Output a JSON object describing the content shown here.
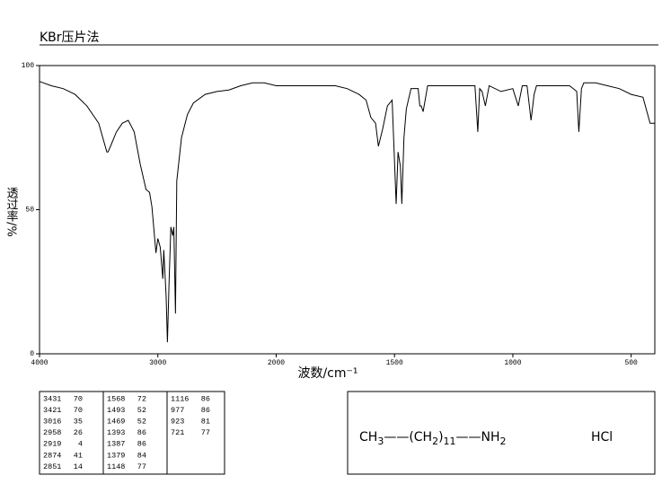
{
  "chart_data": {
    "type": "line",
    "title": "KBr压片法",
    "xlabel": "波数/cm⁻¹",
    "ylabel": "透过率/%",
    "xlim": [
      4000,
      400
    ],
    "ylim": [
      0,
      100
    ],
    "x_scale_break": 2000,
    "xticks": [
      4000,
      3000,
      2000,
      1500,
      1000,
      500
    ],
    "yticks": [
      0,
      50,
      100
    ],
    "color": "#000000",
    "x": [
      4000,
      3900,
      3800,
      3700,
      3600,
      3500,
      3431,
      3421,
      3400,
      3350,
      3300,
      3250,
      3200,
      3150,
      3100,
      3070,
      3050,
      3016,
      3000,
      2980,
      2958,
      2950,
      2930,
      2919,
      2905,
      2890,
      2874,
      2865,
      2851,
      2840,
      2800,
      2750,
      2700,
      2600,
      2500,
      2400,
      2300,
      2200,
      2100,
      2000,
      1900,
      1800,
      1750,
      1700,
      1650,
      1620,
      1600,
      1580,
      1568,
      1550,
      1530,
      1510,
      1493,
      1485,
      1475,
      1469,
      1460,
      1450,
      1430,
      1400,
      1393,
      1387,
      1379,
      1360,
      1300,
      1250,
      1200,
      1160,
      1148,
      1140,
      1130,
      1116,
      1100,
      1050,
      1000,
      977,
      960,
      940,
      923,
      910,
      900,
      850,
      800,
      760,
      730,
      721,
      710,
      700,
      650,
      600,
      550,
      500,
      450,
      420,
      400
    ],
    "values": [
      94.5,
      93,
      92,
      90,
      86,
      80,
      70,
      70,
      72,
      77,
      80,
      81,
      77,
      66,
      57,
      56,
      51,
      35,
      40,
      37,
      26,
      36,
      20,
      4,
      25,
      44,
      41,
      44,
      14,
      60,
      75,
      83,
      87,
      90,
      91,
      91.5,
      93,
      94,
      94,
      93,
      93,
      93,
      93,
      92,
      90,
      88,
      82,
      80,
      72,
      78,
      86,
      88,
      52,
      70,
      65,
      52,
      75,
      85,
      92,
      92,
      86,
      86,
      84,
      93,
      93,
      93,
      93,
      93,
      77,
      92,
      91,
      86,
      93,
      91,
      92,
      86,
      93,
      93,
      81,
      90,
      93,
      93,
      93,
      93,
      91,
      77,
      92,
      94,
      94,
      93,
      92,
      90,
      89,
      80,
      80
    ]
  },
  "peak_table": [
    [
      [
        3431,
        70
      ],
      [
        3421,
        70
      ],
      [
        3016,
        35
      ],
      [
        2958,
        26
      ],
      [
        2919,
        4
      ],
      [
        2874,
        41
      ],
      [
        2851,
        14
      ]
    ],
    [
      [
        1568,
        72
      ],
      [
        1493,
        52
      ],
      [
        1469,
        52
      ],
      [
        1393,
        86
      ],
      [
        1387,
        86
      ],
      [
        1379,
        84
      ],
      [
        1148,
        77
      ]
    ],
    [
      [
        1116,
        86
      ],
      [
        977,
        86
      ],
      [
        923,
        81
      ],
      [
        721,
        77
      ]
    ]
  ],
  "structure": {
    "formula": [
      "CH",
      "3",
      "——(CH",
      "2",
      ")",
      "11",
      "——NH",
      "2"
    ],
    "salt": "HCl"
  }
}
